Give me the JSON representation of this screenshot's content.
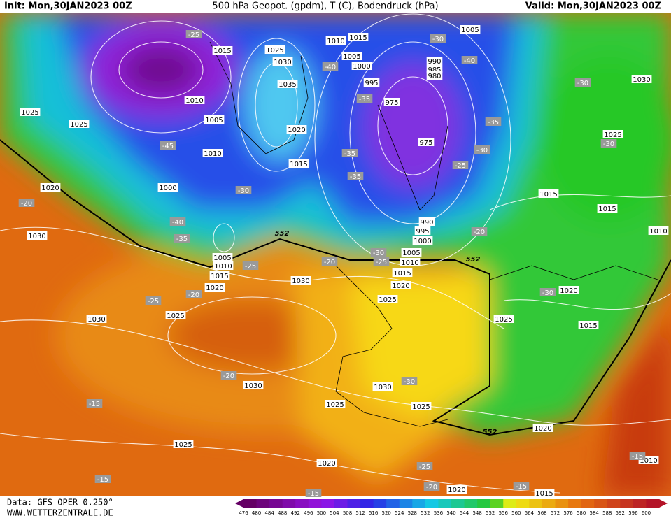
{
  "header": {
    "init": "Init: Mon,30JAN2023 00Z",
    "title": "500 hPa Geopot. (gpdm), T (C), Bodendruck (hPa)",
    "valid": "Valid: Mon,30JAN2023 00Z"
  },
  "footer": {
    "data": "Data: GFS OPER 0.250°",
    "site": "WWW.WETTERZENTRALE.DE"
  },
  "colorbar": {
    "labels": [
      "476",
      "480",
      "484",
      "488",
      "492",
      "496",
      "500",
      "504",
      "508",
      "512",
      "516",
      "520",
      "524",
      "528",
      "532",
      "536",
      "540",
      "544",
      "548",
      "552",
      "556",
      "560",
      "564",
      "568",
      "572",
      "576",
      "580",
      "584",
      "588",
      "592",
      "596",
      "600"
    ]
  },
  "map_labels": [
    "1015",
    "1025",
    "1030",
    "1035",
    "1020",
    "1015",
    "1010",
    "1005",
    "1010",
    "1000",
    "1025",
    "1025",
    "1020",
    "1030",
    "1005",
    "1010",
    "1015",
    "1020",
    "1030",
    "1025",
    "1030",
    "1030",
    "1030",
    "1025",
    "1025",
    "1025",
    "1020",
    "1020",
    "1015",
    "1020",
    "1010",
    "1025",
    "1025",
    "1020",
    "1015",
    "1010",
    "1005",
    "1000",
    "995",
    "990",
    "975",
    "975",
    "995",
    "1000",
    "1005",
    "1010",
    "1015",
    "1005",
    "990",
    "985",
    "980",
    "1030",
    "1025",
    "1015",
    "1015",
    "1020",
    "1015",
    "1010",
    "-25",
    "-40",
    "-40",
    "-35",
    "-35",
    "-30",
    "-25",
    "-35",
    "-35",
    "-45",
    "-30",
    "-40",
    "-35",
    "-20",
    "-25",
    "-20",
    "-25",
    "-30",
    "-20",
    "-30",
    "-30",
    "-30",
    "-25",
    "-20",
    "-20",
    "-30",
    "-15",
    "-15",
    "-25",
    "-20",
    "-15",
    "-15",
    "-15",
    "-30",
    "552",
    "552",
    "552"
  ]
}
